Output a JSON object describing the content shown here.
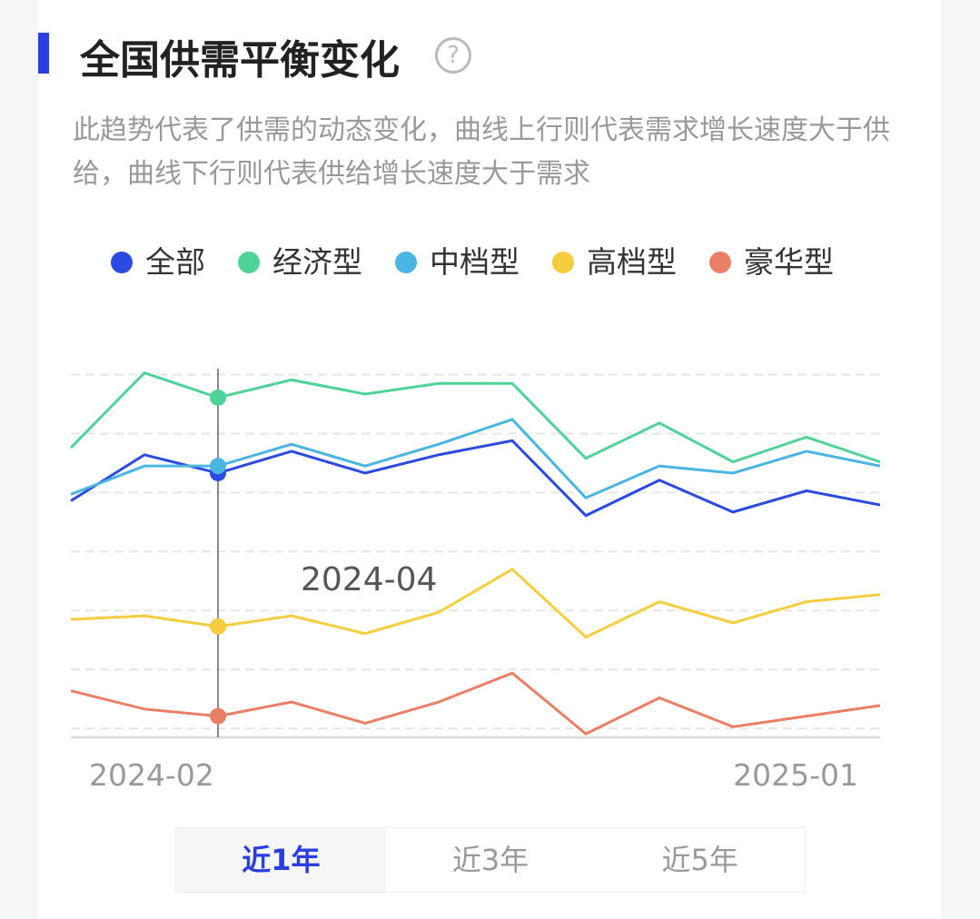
{
  "title": "全国供需平衡变化",
  "description": "此趋势代表了供需的动态变化，曲线上行则代表需求增长速度大于供给，曲线下行则代表供给增长速度大于需求",
  "tabs": [
    {
      "label": "近1年",
      "active": true
    },
    {
      "label": "近3年",
      "active": false
    },
    {
      "label": "近5年",
      "active": false
    }
  ],
  "chart_data": {
    "type": "line",
    "categories": [
      "2024-02",
      null,
      null,
      null,
      null,
      null,
      null,
      null,
      null,
      null,
      null,
      "2025-01"
    ],
    "series": [
      {
        "name": "全部",
        "color": "#2b4ae0",
        "values": [
          3.86,
          4.64,
          4.33,
          4.7,
          4.33,
          4.64,
          4.88,
          3.61,
          4.21,
          3.67,
          4.03,
          3.79
        ]
      },
      {
        "name": "经济型",
        "color": "#4fd39a",
        "values": [
          4.76,
          6.03,
          5.61,
          5.91,
          5.67,
          5.85,
          5.85,
          4.58,
          5.18,
          4.52,
          4.94,
          4.52
        ]
      },
      {
        "name": "中档型",
        "color": "#4ab5e3",
        "values": [
          3.97,
          4.45,
          4.45,
          4.82,
          4.45,
          4.82,
          5.24,
          3.91,
          4.45,
          4.33,
          4.7,
          4.45
        ]
      },
      {
        "name": "高档型",
        "color": "#f5cd3f",
        "values": [
          1.85,
          1.91,
          1.73,
          1.91,
          1.61,
          1.97,
          2.7,
          1.55,
          2.15,
          1.79,
          2.15,
          2.27
        ]
      },
      {
        "name": "豪华型",
        "color": "#ea7f66",
        "values": [
          0.64,
          0.33,
          0.21,
          0.45,
          0.09,
          0.45,
          0.94,
          -0.09,
          0.52,
          0.03,
          0.21,
          0.39
        ]
      }
    ],
    "ylim": [
      -0.15,
      6.1
    ],
    "yticks": [
      0,
      1,
      2,
      3,
      4,
      5,
      6
    ],
    "grid": true,
    "legend": "top",
    "tooltip": {
      "index": 2,
      "label": "2024-04"
    }
  }
}
